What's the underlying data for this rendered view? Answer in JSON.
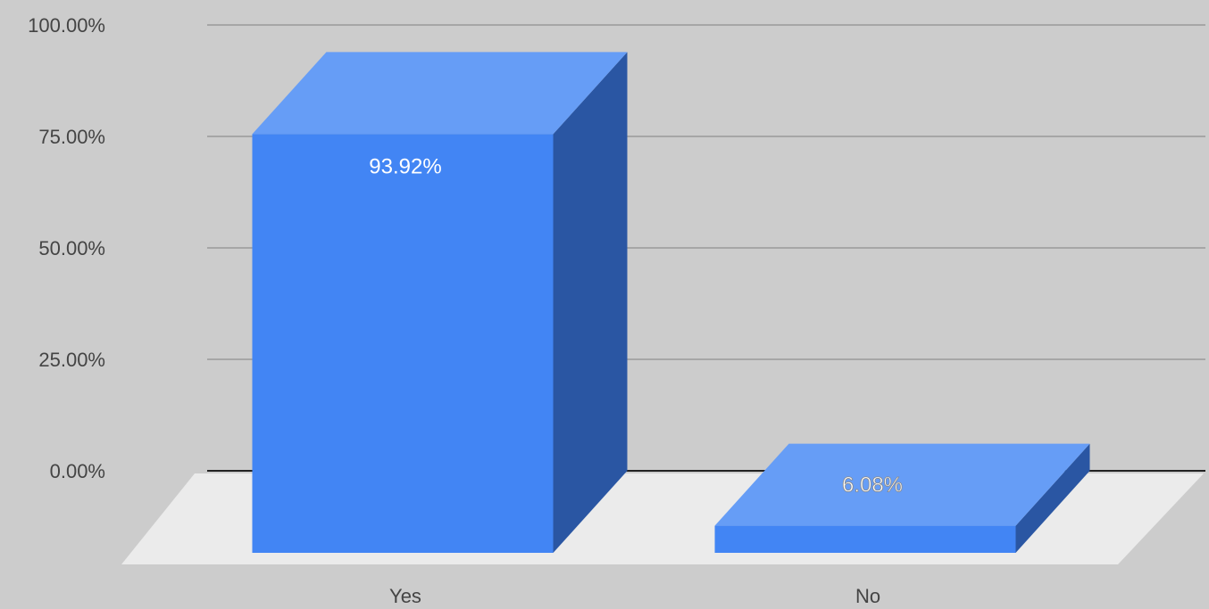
{
  "chart_data": {
    "type": "bar",
    "style": "3d",
    "categories": [
      "Yes",
      "No"
    ],
    "values": [
      93.92,
      6.08
    ],
    "data_labels": [
      "93.92%",
      "6.08%"
    ],
    "ylim": [
      0,
      100
    ],
    "yticks": [
      0,
      25,
      50,
      75,
      100
    ],
    "ytick_labels": [
      "0.00%",
      "25.00%",
      "50.00%",
      "75.00%",
      "100.00%"
    ],
    "title": "",
    "xlabel": "",
    "ylabel": "",
    "grid": true,
    "legend": "none"
  },
  "colors": {
    "background": "#cccccc",
    "floor": "#ebebeb",
    "gridline": "#999999",
    "baseline": "#222222",
    "bar_front": "#4285f4",
    "bar_top": "#669df6",
    "bar_side": "#2a56a3",
    "tick_text": "#444444",
    "data_label_text": "#ffffff"
  }
}
